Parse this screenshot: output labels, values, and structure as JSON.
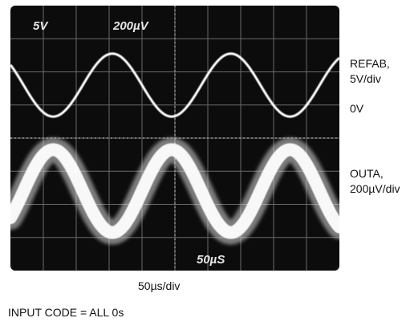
{
  "chart_data": {
    "type": "line",
    "title": "",
    "xlabel": "50µs/div",
    "ylabel": "",
    "grid": true,
    "divisions": {
      "x": 10,
      "y": 8
    },
    "screen_readouts": [
      "5V",
      "200µV",
      "50µS"
    ],
    "series": [
      {
        "name": "REFAB, 5V/div",
        "channel_scale_label": "5V",
        "color": "#ffffff",
        "trace_style": "thin",
        "period_div": 3.6,
        "center_div": 5.6,
        "amplitude_div": 0.95,
        "first_peak_div": 3.1
      },
      {
        "name": "OUTA, 200µV/div",
        "channel_scale_label": "200µV",
        "color": "#ffffff",
        "trace_style": "noisy-wide",
        "period_div": 3.6,
        "center_div": 2.4,
        "amplitude_div": 1.25,
        "first_peak_div": 1.3
      }
    ],
    "annotations": {
      "zero_level_label": "0V",
      "timebase_label": "50µS",
      "footnote": "INPUT CODE = ALL 0s"
    }
  },
  "labels": {
    "refab": "REFAB,\n5V/div",
    "zero": "0V",
    "outa": "OUTA,\n200µV/div",
    "time_div": "50µs/div",
    "input_code": "INPUT CODE = ALL 0s"
  }
}
